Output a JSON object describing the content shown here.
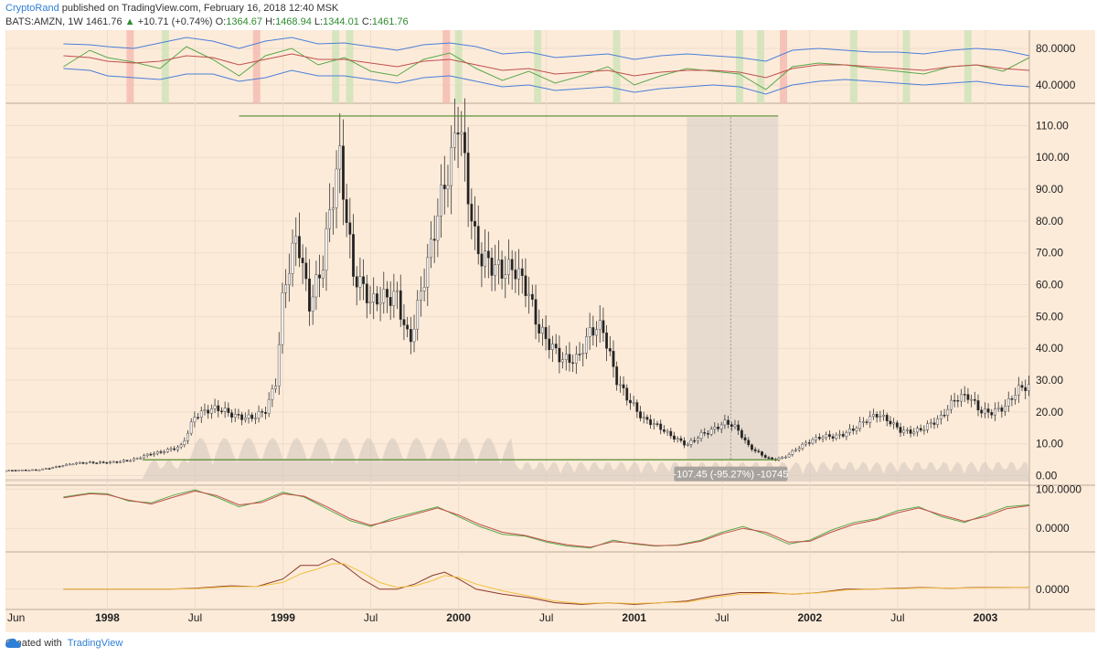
{
  "header": {
    "author": "CryptoRand",
    "published_text": "published on TradingView.com, February 16, 2018 12:40 MSK",
    "symbol": "BATS:AMZN, 1W",
    "last": "1461.76",
    "up_arrow": "▲",
    "change": "+10.71 (+0.74%)",
    "o_label": "O:",
    "o_val": "1364.67",
    "h_label": "H:",
    "h_val": "1468.94",
    "l_label": "L:",
    "l_val": "1344.01",
    "c_label": "C:",
    "c_val": "1461.76"
  },
  "footer": {
    "created_with": "Created with",
    "brand": "TradingView",
    "logo_icon": "tradingview-cloud-icon"
  },
  "colors": {
    "background": "#fdebd9",
    "grid": "#efdccb",
    "candle_up": "#f2f2f2",
    "candle_down": "#222222",
    "rsi_line": "#5aa84a",
    "band_line": "#4a7fd8",
    "mid_line": "#c0504d",
    "level_line": "#4f8a2a",
    "measure_box": "#d8d0c8",
    "stoch_k": "#5aa84a",
    "stoch_d": "#c0504d",
    "macd_line": "#8b3a2a",
    "signal_line": "#f0c040"
  },
  "annotation": {
    "measure_label": "-107.45 (-95.27%) -10745"
  },
  "chart_data": [
    {
      "type": "line",
      "name": "top-oscillator",
      "y_ticks": [
        "80.0000",
        "40.0000"
      ],
      "y_tick_values": [
        80,
        40
      ],
      "ylim": [
        20,
        100
      ],
      "x": [
        1997.75,
        1997.9,
        1998.0,
        1998.15,
        1998.3,
        1998.45,
        1998.6,
        1998.75,
        1998.9,
        1999.05,
        1999.2,
        1999.35,
        1999.5,
        1999.65,
        1999.8,
        1999.95,
        2000.1,
        2000.25,
        2000.4,
        2000.55,
        2000.7,
        2000.85,
        2001.0,
        2001.15,
        2001.3,
        2001.45,
        2001.6,
        2001.75,
        2001.9,
        2002.05,
        2002.2,
        2002.35,
        2002.5,
        2002.65,
        2002.8,
        2002.95,
        2003.1,
        2003.25
      ],
      "series": [
        {
          "name": "rsi",
          "values": [
            60,
            78,
            70,
            65,
            58,
            82,
            68,
            50,
            72,
            80,
            62,
            70,
            55,
            50,
            68,
            75,
            58,
            45,
            55,
            42,
            50,
            60,
            40,
            50,
            58,
            55,
            52,
            35,
            60,
            64,
            62,
            58,
            55,
            52,
            60,
            62,
            55,
            70
          ]
        },
        {
          "name": "upper-band",
          "values": [
            85,
            84,
            82,
            80,
            86,
            92,
            88,
            80,
            88,
            92,
            85,
            86,
            82,
            78,
            84,
            86,
            82,
            74,
            76,
            70,
            72,
            74,
            68,
            72,
            74,
            72,
            70,
            66,
            78,
            80,
            78,
            76,
            76,
            74,
            78,
            80,
            78,
            72
          ]
        },
        {
          "name": "basis",
          "values": [
            72,
            70,
            66,
            64,
            66,
            72,
            70,
            62,
            68,
            74,
            68,
            68,
            64,
            60,
            66,
            68,
            62,
            56,
            58,
            52,
            54,
            56,
            50,
            54,
            56,
            56,
            54,
            48,
            58,
            62,
            62,
            60,
            58,
            56,
            60,
            62,
            58,
            56
          ]
        },
        {
          "name": "lower-band",
          "values": [
            58,
            56,
            50,
            48,
            46,
            52,
            52,
            44,
            48,
            56,
            50,
            50,
            46,
            42,
            48,
            50,
            44,
            38,
            40,
            34,
            36,
            38,
            32,
            36,
            38,
            40,
            38,
            30,
            40,
            44,
            46,
            44,
            42,
            40,
            42,
            44,
            40,
            38
          ]
        }
      ]
    },
    {
      "type": "candlestick",
      "name": "price",
      "title": "BATS:AMZN, 1W",
      "y_ticks": [
        "110.00",
        "100.00",
        "90.00",
        "80.00",
        "70.00",
        "60.00",
        "50.00",
        "40.00",
        "30.00",
        "20.00",
        "10.00",
        "0.00"
      ],
      "y_tick_values": [
        110,
        100,
        90,
        80,
        70,
        60,
        50,
        40,
        30,
        20,
        10,
        0
      ],
      "ylim": [
        -3,
        117
      ],
      "xlim": [
        1997.42,
        2003.25
      ],
      "x_ticks": [
        {
          "label": "Jun",
          "x": 1997.42,
          "year": false
        },
        {
          "label": "1998",
          "x": 1998.0,
          "year": true
        },
        {
          "label": "Jul",
          "x": 1998.5,
          "year": false
        },
        {
          "label": "1999",
          "x": 1999.0,
          "year": true
        },
        {
          "label": "Jul",
          "x": 1999.5,
          "year": false
        },
        {
          "label": "2000",
          "x": 2000.0,
          "year": true
        },
        {
          "label": "Jul",
          "x": 2000.5,
          "year": false
        },
        {
          "label": "2001",
          "x": 2001.0,
          "year": true
        },
        {
          "label": "Jul",
          "x": 2001.5,
          "year": false
        },
        {
          "label": "2002",
          "x": 2002.0,
          "year": true
        },
        {
          "label": "Jul",
          "x": 2002.5,
          "year": false
        },
        {
          "label": "2003",
          "x": 2003.0,
          "year": true
        }
      ],
      "close_path": {
        "x": [
          1997.42,
          1997.6,
          1997.8,
          1998.0,
          1998.15,
          1998.3,
          1998.42,
          1998.5,
          1998.6,
          1998.72,
          1998.8,
          1998.9,
          1998.96,
          1999.0,
          1999.08,
          1999.15,
          1999.22,
          1999.28,
          1999.32,
          1999.4,
          1999.5,
          1999.58,
          1999.65,
          1999.72,
          1999.78,
          1999.85,
          1999.92,
          1999.95,
          2000.0,
          2000.05,
          2000.1,
          2000.18,
          2000.25,
          2000.32,
          2000.4,
          2000.45,
          2000.52,
          2000.6,
          2000.68,
          2000.75,
          2000.82,
          2000.9,
          2000.98,
          2001.05,
          2001.12,
          2001.2,
          2001.3,
          2001.38,
          2001.45,
          2001.52,
          2001.58,
          2001.65,
          2001.72,
          2001.78,
          2001.85,
          2001.92,
          2002.0,
          2002.08,
          2002.15,
          2002.22,
          2002.3,
          2002.38,
          2002.45,
          2002.52,
          2002.6,
          2002.68,
          2002.75,
          2002.82,
          2002.9,
          2002.98,
          2003.05,
          2003.12,
          2003.18,
          2003.25
        ],
        "y": [
          1.5,
          2,
          3.5,
          4.5,
          5,
          7,
          10,
          20,
          20,
          18,
          19,
          22,
          30,
          55,
          70,
          52,
          68,
          95,
          108,
          62,
          50,
          55,
          60,
          45,
          58,
          70,
          85,
          90,
          112,
          95,
          78,
          70,
          62,
          60,
          55,
          48,
          45,
          38,
          35,
          42,
          45,
          32,
          25,
          18,
          15,
          12,
          10,
          14,
          15,
          16,
          14,
          9,
          7,
          5.5,
          6,
          8,
          10,
          12,
          13,
          15,
          17,
          18,
          16,
          14,
          15,
          17,
          18,
          22,
          24,
          21,
          22,
          23,
          26,
          26
        ]
      },
      "resistance_level": 113,
      "support_level": 5,
      "measure": {
        "from": 112.6,
        "to": 5.15,
        "label": "-107.45 (-95.27%) -10745",
        "x_start": 2001.3,
        "x_mid": 2001.55,
        "x_end": 2001.82
      }
    },
    {
      "type": "line",
      "name": "stochastic-oscillator",
      "y_ticks": [
        "100.0000",
        "0.0000"
      ],
      "y_tick_values": [
        100,
        0
      ],
      "ylim": [
        -60,
        110
      ],
      "x": [
        1997.75,
        1997.9,
        1998.0,
        1998.12,
        1998.25,
        1998.38,
        1998.5,
        1998.62,
        1998.75,
        1998.88,
        1999.0,
        1999.12,
        1999.25,
        1999.38,
        1999.5,
        1999.62,
        1999.75,
        1999.88,
        2000.0,
        2000.12,
        2000.25,
        2000.38,
        2000.5,
        2000.62,
        2000.75,
        2000.88,
        2001.0,
        2001.12,
        2001.25,
        2001.38,
        2001.5,
        2001.62,
        2001.75,
        2001.88,
        2002.0,
        2002.12,
        2002.25,
        2002.38,
        2002.5,
        2002.62,
        2002.75,
        2002.88,
        2003.0,
        2003.12,
        2003.25
      ],
      "series": [
        {
          "name": "%K",
          "values": [
            80,
            90,
            88,
            70,
            65,
            85,
            98,
            80,
            55,
            70,
            92,
            80,
            50,
            20,
            5,
            25,
            40,
            55,
            30,
            5,
            -15,
            -20,
            -35,
            -45,
            -50,
            -30,
            -40,
            -45,
            -42,
            -30,
            -10,
            5,
            -15,
            -40,
            -30,
            -5,
            15,
            25,
            45,
            55,
            30,
            15,
            35,
            55,
            60
          ]
        },
        {
          "name": "%D",
          "values": [
            78,
            88,
            86,
            72,
            62,
            80,
            95,
            84,
            60,
            66,
            88,
            82,
            55,
            25,
            8,
            20,
            36,
            52,
            34,
            10,
            -10,
            -18,
            -32,
            -42,
            -48,
            -34,
            -38,
            -44,
            -43,
            -33,
            -14,
            0,
            -10,
            -35,
            -33,
            -10,
            10,
            22,
            40,
            52,
            34,
            18,
            30,
            50,
            58
          ]
        }
      ]
    },
    {
      "type": "line",
      "name": "macd",
      "y_ticks": [
        "0.0000"
      ],
      "y_tick_values": [
        0
      ],
      "ylim": [
        -12,
        22
      ],
      "x": [
        1997.75,
        1997.95,
        1998.15,
        1998.35,
        1998.5,
        1998.7,
        1998.85,
        1999.0,
        1999.1,
        1999.2,
        1999.28,
        1999.35,
        1999.45,
        1999.55,
        1999.65,
        1999.75,
        1999.85,
        1999.92,
        2000.0,
        2000.1,
        2000.25,
        2000.4,
        2000.55,
        2000.7,
        2000.85,
        2001.0,
        2001.15,
        2001.3,
        2001.45,
        2001.6,
        2001.75,
        2001.9,
        2002.05,
        2002.2,
        2002.35,
        2002.5,
        2002.65,
        2002.8,
        2002.95,
        2003.1,
        2003.25
      ],
      "series": [
        {
          "name": "macd",
          "values": [
            0,
            0,
            0,
            0,
            0.5,
            2,
            1.5,
            6,
            14,
            14,
            18,
            14,
            6,
            0,
            0,
            3,
            8,
            10,
            6,
            0,
            -3,
            -5,
            -8,
            -9,
            -8,
            -9,
            -8,
            -7,
            -4,
            -2,
            -2,
            -3,
            -2,
            0,
            0,
            0.5,
            1,
            0.5,
            1,
            1,
            1
          ]
        },
        {
          "name": "signal",
          "values": [
            0,
            0,
            0,
            0,
            0.3,
            1.5,
            1.5,
            4,
            9,
            12,
            15,
            15,
            10,
            4,
            1,
            2,
            5,
            8,
            7,
            3,
            -1,
            -4,
            -7,
            -8.5,
            -8,
            -8.5,
            -8,
            -7.5,
            -5,
            -3,
            -2.5,
            -2.8,
            -2.2,
            -0.5,
            0,
            0.3,
            0.8,
            0.6,
            0.8,
            0.9,
            1
          ]
        }
      ]
    }
  ]
}
